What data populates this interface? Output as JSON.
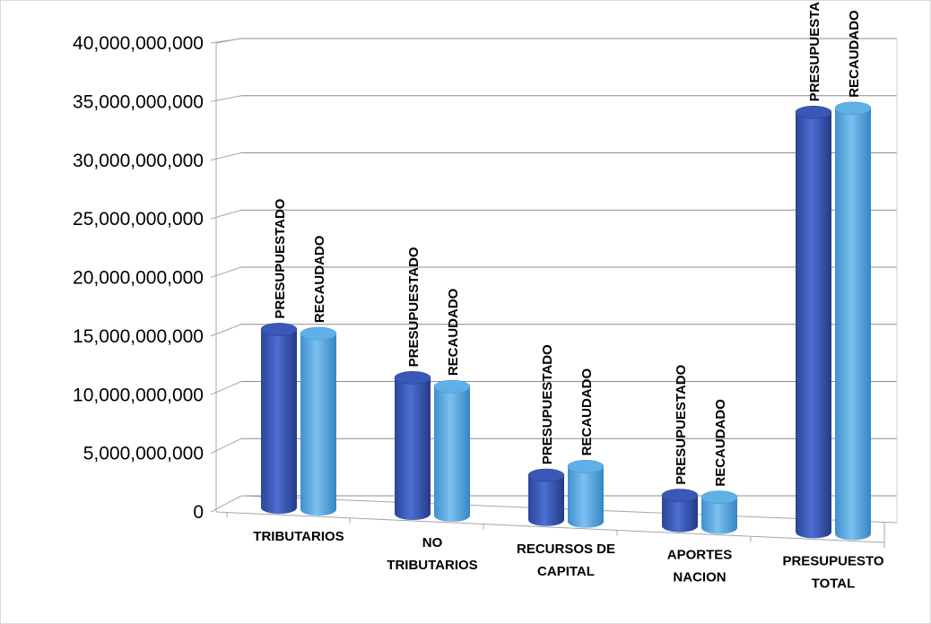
{
  "chart_data": {
    "type": "bar",
    "categories": [
      [
        "TRIBUTARIOS"
      ],
      [
        "NO",
        "TRIBUTARIOS"
      ],
      [
        "RECURSOS DE",
        "CAPITAL"
      ],
      [
        "APORTES",
        "NACION"
      ],
      [
        "PRESUPUESTO",
        "TOTAL"
      ]
    ],
    "series": [
      {
        "name": "PRESUPUESTADO",
        "values": [
          15200000000,
          11600000000,
          3800000000,
          2600000000,
          35800000000
        ],
        "color": "#3f5fbf"
      },
      {
        "name": "RECAUDADO",
        "values": [
          15000000000,
          11000000000,
          4700000000,
          2600000000,
          36300000000
        ],
        "color": "#5aa9e2"
      }
    ],
    "y_ticks": [
      "0",
      "5,000,000,000",
      "10,000,000,000",
      "15,000,000,000",
      "20,000,000,000",
      "25,000,000,000",
      "30,000,000,000",
      "35,000,000,000",
      "40,000,000,000"
    ],
    "ylim": [
      0,
      40000000000
    ],
    "grid": true,
    "style": "3d-cylinder"
  }
}
